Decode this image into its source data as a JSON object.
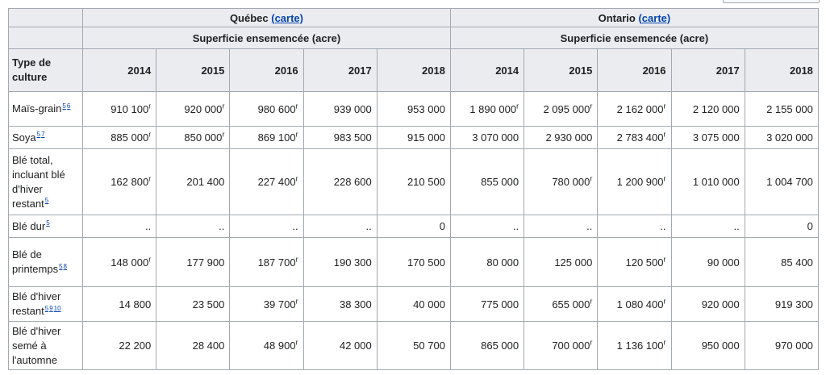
{
  "regions": [
    {
      "name": "Québec",
      "link": "(carte)",
      "subheader": "Superficie ensemencée (acre)",
      "years": [
        "2014",
        "2015",
        "2016",
        "2017",
        "2018"
      ]
    },
    {
      "name": "Ontario",
      "link": "(carte)",
      "subheader": "Superficie ensemencée (acre)",
      "years": [
        "2014",
        "2015",
        "2016",
        "2017",
        "2018"
      ]
    }
  ],
  "first_header": "Type de culture",
  "rows": [
    {
      "label": "Maïs-grain",
      "refs": [
        "5",
        "6"
      ],
      "cells": [
        {
          "text": "910 100",
          "note": "r"
        },
        {
          "text": "920 000",
          "note": "r"
        },
        {
          "text": "980 600",
          "note": "r"
        },
        "939 000",
        "953 000",
        {
          "text": "1 890 000",
          "note": "r"
        },
        {
          "text": "2 095 000",
          "note": "r"
        },
        {
          "text": "2 162 000",
          "note": "r"
        },
        "2 120 000",
        "2 155 000"
      ]
    },
    {
      "label": "Soya",
      "refs": [
        "5",
        "7"
      ],
      "cells": [
        {
          "text": "885 000",
          "note": "r"
        },
        {
          "text": "850 000",
          "note": "r"
        },
        {
          "text": "869 100",
          "note": "r"
        },
        "983 500",
        "915 000",
        "3 070 000",
        "2 930 000",
        {
          "text": "2 783 400",
          "note": "r"
        },
        "3 075 000",
        "3 020 000"
      ]
    },
    {
      "label": "Blé total, incluant blé d'hiver restant",
      "refs": [
        "5"
      ],
      "cells": [
        {
          "text": "162 800",
          "note": "r"
        },
        "201 400",
        {
          "text": "227 400",
          "note": "r"
        },
        "228 600",
        "210 500",
        "855 000",
        {
          "text": "780 000",
          "note": "r"
        },
        {
          "text": "1 200 900",
          "note": "r"
        },
        "1 010 000",
        "1 004 700"
      ]
    },
    {
      "label": "Blé dur",
      "refs": [
        "5"
      ],
      "cells": [
        "..",
        "..",
        "..",
        "..",
        "0",
        "..",
        "..",
        "..",
        "..",
        "0"
      ]
    },
    {
      "label": "Blé de printemps",
      "refs": [
        "5",
        "8"
      ],
      "cells": [
        {
          "text": "148 000",
          "note": "r"
        },
        "177 900",
        {
          "text": "187 700",
          "note": "r"
        },
        "190 300",
        "170 500",
        "80 000",
        "125 000",
        {
          "text": "120 500",
          "note": "r"
        },
        "90 000",
        "85 400"
      ]
    },
    {
      "label": "Blé d'hiver restant",
      "refs": [
        "5",
        "9",
        "10"
      ],
      "cells": [
        "14 800",
        "23 500",
        {
          "text": "39 700",
          "note": "r"
        },
        "38 300",
        "40 000",
        "775 000",
        {
          "text": "655 000",
          "note": "r"
        },
        {
          "text": "1 080 400",
          "note": "r"
        },
        "920 000",
        "919 300"
      ]
    },
    {
      "label": "Blé d'hiver semé à l'automne",
      "refs": [],
      "cells": [
        "22 200",
        "28 400",
        {
          "text": "48 900",
          "note": "r"
        },
        "42 000",
        "50 700",
        "865 000",
        {
          "text": "700 000",
          "note": "r"
        },
        {
          "text": "1 136 100",
          "note": "r"
        },
        "950 000",
        "970 000"
      ]
    }
  ]
}
